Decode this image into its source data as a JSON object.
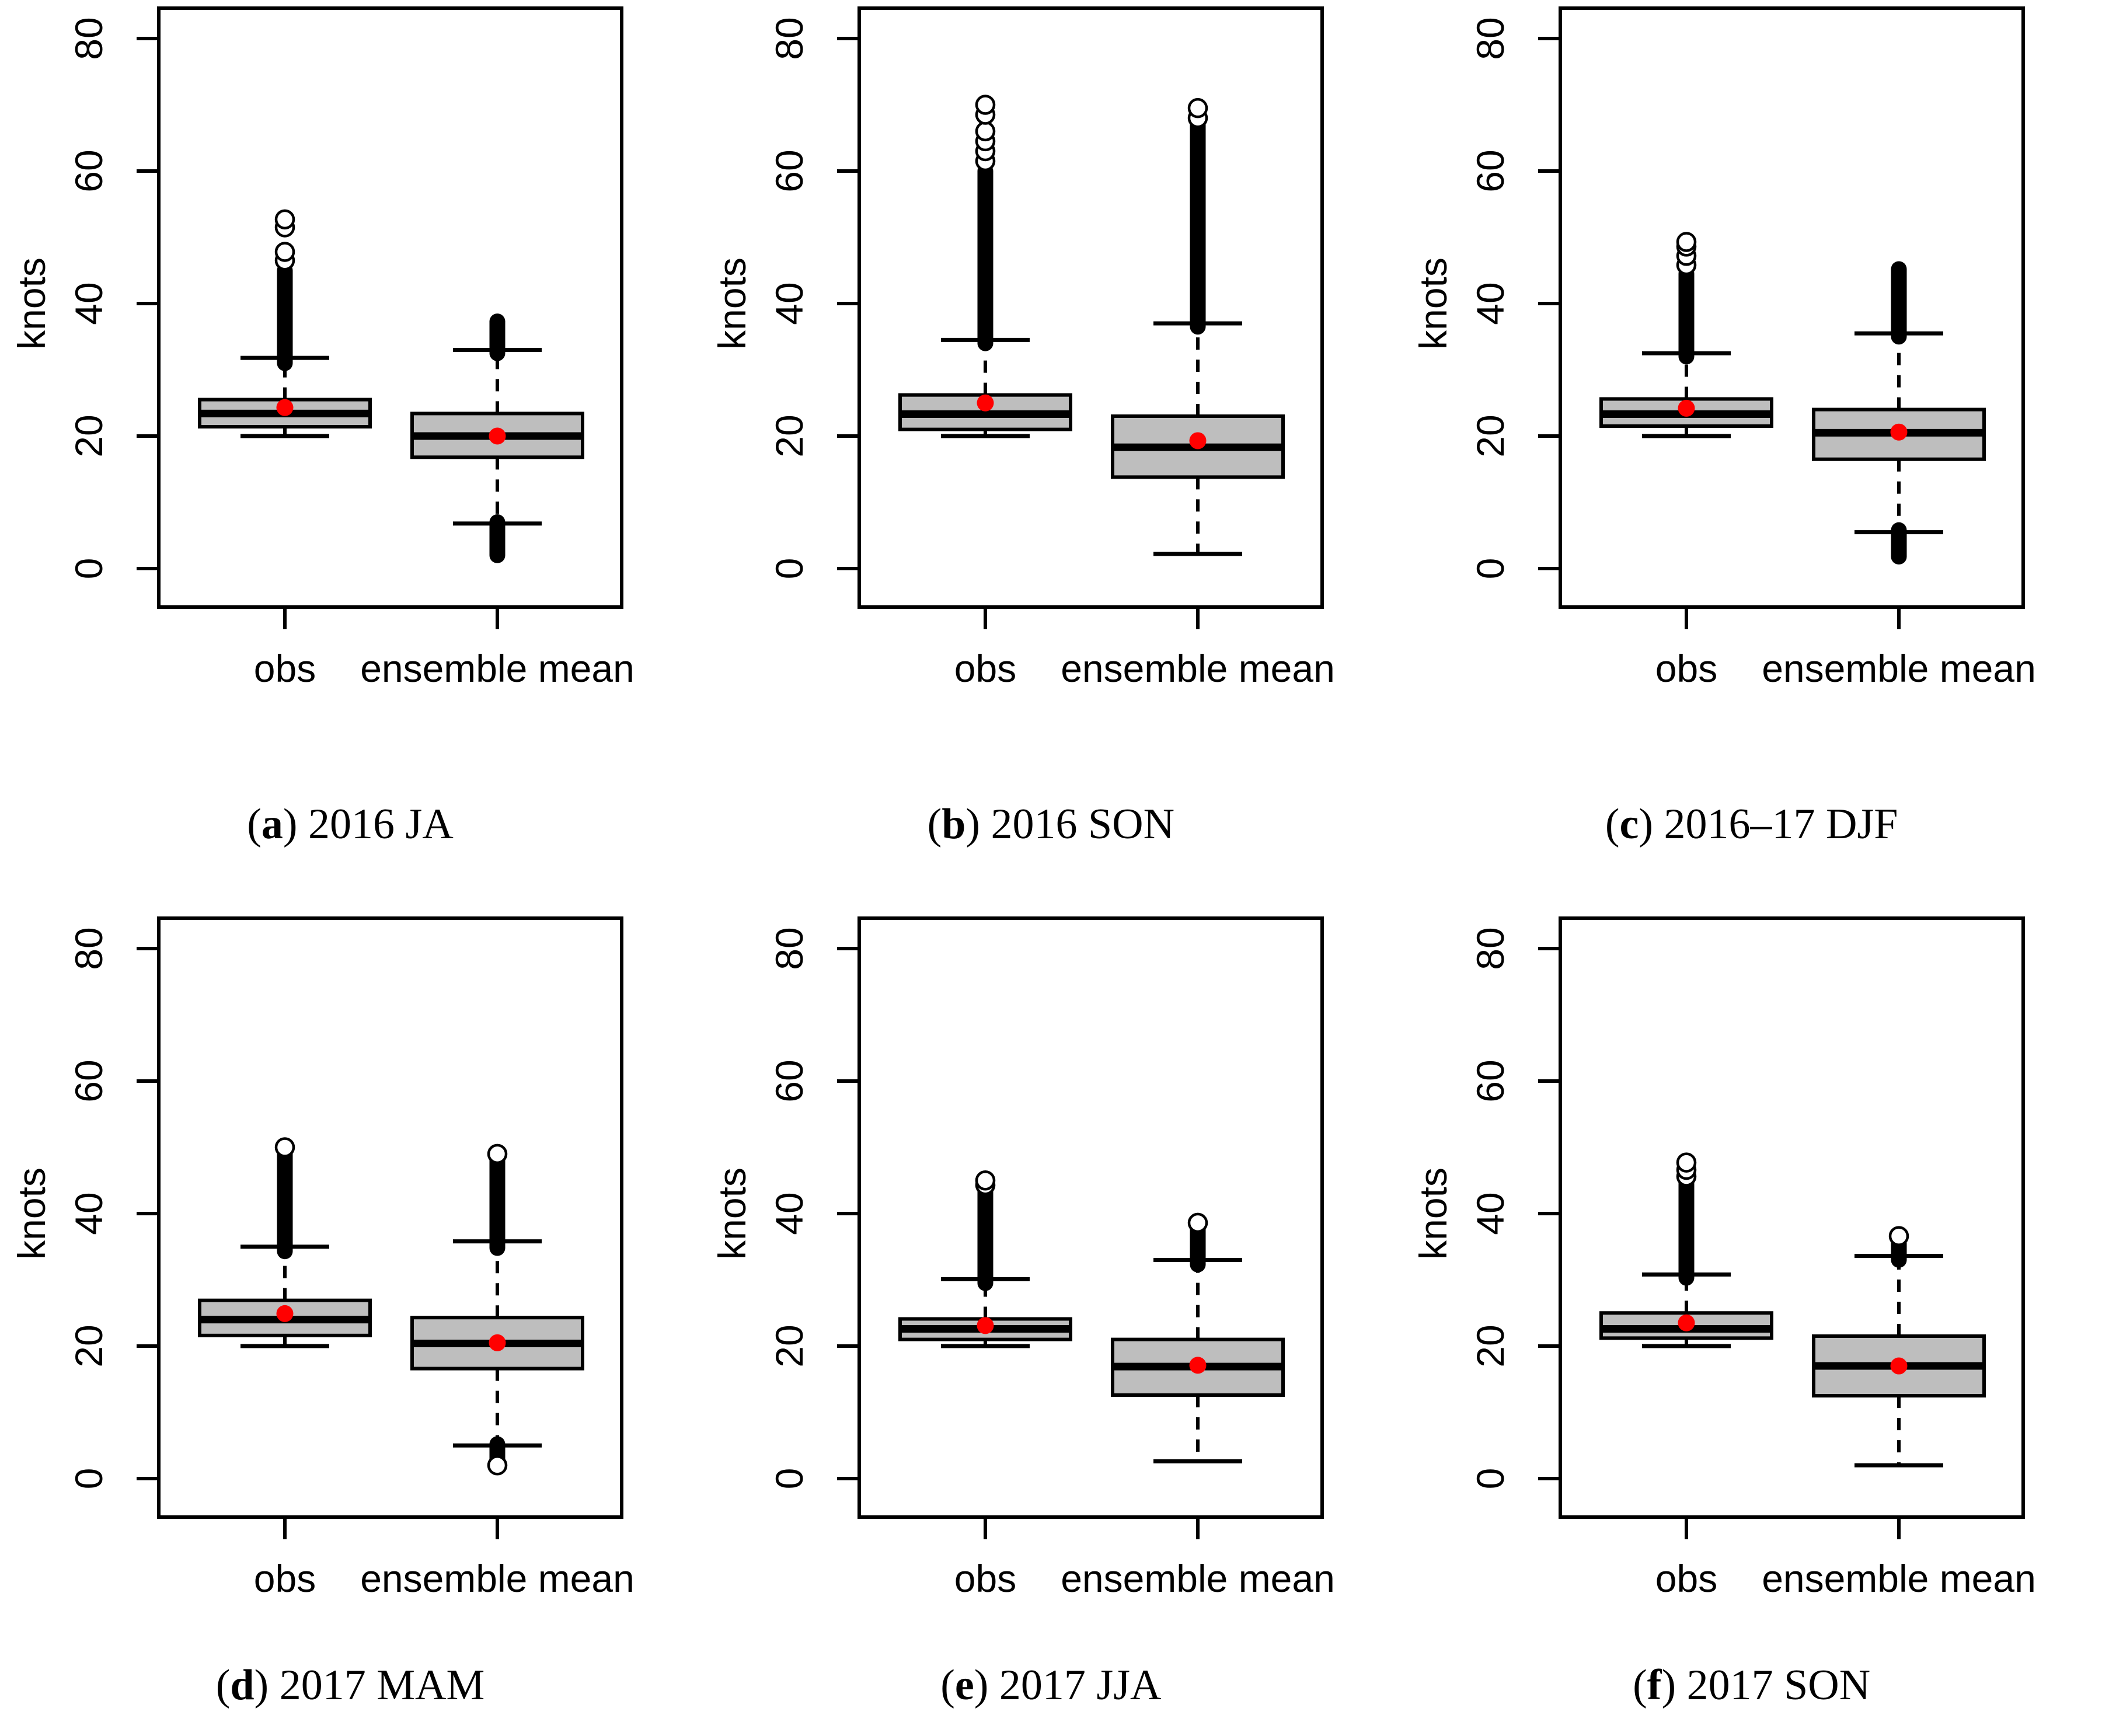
{
  "figure": {
    "ylabel": "knots",
    "x_categories": [
      "obs",
      "ensemble mean"
    ],
    "colors": {
      "box_fill": "#bebebe",
      "mean_dot": "#ff0000",
      "line": "#000000",
      "background": "#ffffff"
    }
  },
  "chart_data": [
    {
      "type": "boxplot",
      "panel": "a",
      "caption": "2016 JA",
      "ylabel": "knots",
      "yticks": [
        0,
        20,
        40,
        60,
        80
      ],
      "ylim": [
        0,
        84
      ],
      "categories": [
        "obs",
        "ensemble mean"
      ],
      "series": [
        {
          "name": "obs",
          "whisker_low": 20,
          "q1": 21.4,
          "median": 23.4,
          "q3": 25.5,
          "mean": 24.3,
          "whisker_high": 31.8,
          "outliers_dense_high": [
            31,
            45
          ],
          "outlier_circles_high": [
            46.5,
            47.8,
            51.5,
            52.7
          ],
          "outliers_dense_low": null,
          "outlier_circles_low": []
        },
        {
          "name": "ensemble mean",
          "whisker_low": 6.8,
          "q1": 16.8,
          "median": 20,
          "q3": 23.4,
          "mean": 20,
          "whisker_high": 33,
          "outliers_dense_high": [
            32.5,
            37.3
          ],
          "outlier_circles_high": [],
          "outliers_dense_low": [
            2,
            7
          ],
          "outlier_circles_low": []
        }
      ]
    },
    {
      "type": "boxplot",
      "panel": "b",
      "caption": "2016 SON",
      "ylabel": "knots",
      "yticks": [
        0,
        20,
        40,
        60,
        80
      ],
      "ylim": [
        0,
        84
      ],
      "categories": [
        "obs",
        "ensemble mean"
      ],
      "series": [
        {
          "name": "obs",
          "whisker_low": 20,
          "q1": 21,
          "median": 23.3,
          "q3": 26.2,
          "mean": 25,
          "whisker_high": 34.5,
          "outliers_dense_high": [
            34,
            60
          ],
          "outlier_circles_high": [
            61.5,
            63,
            64.5,
            66,
            68.5,
            70
          ],
          "outliers_dense_low": null,
          "outlier_circles_low": []
        },
        {
          "name": "ensemble mean",
          "whisker_low": 2.2,
          "q1": 13.8,
          "median": 18.3,
          "q3": 23,
          "mean": 19.3,
          "whisker_high": 37,
          "outliers_dense_high": [
            36.5,
            67
          ],
          "outlier_circles_high": [
            68,
            69.5
          ],
          "outliers_dense_low": null,
          "outlier_circles_low": []
        }
      ]
    },
    {
      "type": "boxplot",
      "panel": "c",
      "caption": "2016–17 DJF",
      "ylabel": "knots",
      "yticks": [
        0,
        20,
        40,
        60,
        80
      ],
      "ylim": [
        0,
        84
      ],
      "categories": [
        "obs",
        "ensemble mean"
      ],
      "series": [
        {
          "name": "obs",
          "whisker_low": 20,
          "q1": 21.5,
          "median": 23.3,
          "q3": 25.6,
          "mean": 24.2,
          "whisker_high": 32.5,
          "outliers_dense_high": [
            32,
            44.5
          ],
          "outlier_circles_high": [
            45.8,
            47.2,
            48.6,
            49.3
          ],
          "outliers_dense_low": null,
          "outlier_circles_low": []
        },
        {
          "name": "ensemble mean",
          "whisker_low": 5.5,
          "q1": 16.5,
          "median": 20.5,
          "q3": 24,
          "mean": 20.6,
          "whisker_high": 35.5,
          "outliers_dense_high": [
            35,
            45.2
          ],
          "outlier_circles_high": [],
          "outliers_dense_low": [
            1.8,
            5.8
          ],
          "outlier_circles_low": []
        }
      ]
    },
    {
      "type": "boxplot",
      "panel": "d",
      "caption": "2017 MAM",
      "ylabel": "knots",
      "yticks": [
        0,
        20,
        40,
        60,
        80
      ],
      "ylim": [
        0,
        84
      ],
      "categories": [
        "obs",
        "ensemble mean"
      ],
      "series": [
        {
          "name": "obs",
          "whisker_low": 20,
          "q1": 21.6,
          "median": 24,
          "q3": 26.9,
          "mean": 24.9,
          "whisker_high": 35,
          "outliers_dense_high": [
            34.3,
            49.5
          ],
          "outlier_circles_high": [
            50
          ],
          "outliers_dense_low": null,
          "outlier_circles_low": []
        },
        {
          "name": "ensemble mean",
          "whisker_low": 5,
          "q1": 16.6,
          "median": 20.4,
          "q3": 24.3,
          "mean": 20.5,
          "whisker_high": 35.8,
          "outliers_dense_high": [
            34.8,
            48.3
          ],
          "outlier_circles_high": [
            49
          ],
          "outliers_dense_low": [
            2.6,
            5.2
          ],
          "outlier_circles_low": [
            2
          ]
        }
      ]
    },
    {
      "type": "boxplot",
      "panel": "e",
      "caption": "2017 JJA",
      "ylabel": "knots",
      "yticks": [
        0,
        20,
        40,
        60,
        80
      ],
      "ylim": [
        0,
        84
      ],
      "categories": [
        "obs",
        "ensemble mean"
      ],
      "series": [
        {
          "name": "obs",
          "whisker_low": 20,
          "q1": 21,
          "median": 22.6,
          "q3": 24.1,
          "mean": 23.1,
          "whisker_high": 30.1,
          "outliers_dense_high": [
            29.5,
            43.5
          ],
          "outlier_circles_high": [
            44.3,
            45
          ],
          "outliers_dense_low": null,
          "outlier_circles_low": []
        },
        {
          "name": "ensemble mean",
          "whisker_low": 2.6,
          "q1": 12.6,
          "median": 16.9,
          "q3": 21,
          "mean": 17.1,
          "whisker_high": 33,
          "outliers_dense_high": [
            32.3,
            38
          ],
          "outlier_circles_high": [
            38.6
          ],
          "outliers_dense_low": null,
          "outlier_circles_low": []
        }
      ]
    },
    {
      "type": "boxplot",
      "panel": "f",
      "caption": "2017 SON",
      "ylabel": "knots",
      "yticks": [
        0,
        20,
        40,
        60,
        80
      ],
      "ylim": [
        0,
        84
      ],
      "categories": [
        "obs",
        "ensemble mean"
      ],
      "series": [
        {
          "name": "obs",
          "whisker_low": 20,
          "q1": 21.2,
          "median": 22.6,
          "q3": 25,
          "mean": 23.5,
          "whisker_high": 30.8,
          "outliers_dense_high": [
            30.3,
            44.5
          ],
          "outlier_circles_high": [
            45.6,
            46.6,
            47.7
          ],
          "outliers_dense_low": null,
          "outlier_circles_low": []
        },
        {
          "name": "ensemble mean",
          "whisker_low": 2,
          "q1": 12.5,
          "median": 17,
          "q3": 21.5,
          "mean": 17,
          "whisker_high": 33.6,
          "outliers_dense_high": [
            33,
            35.7
          ],
          "outlier_circles_high": [
            36.6
          ],
          "outliers_dense_low": null,
          "outlier_circles_low": []
        }
      ]
    }
  ]
}
